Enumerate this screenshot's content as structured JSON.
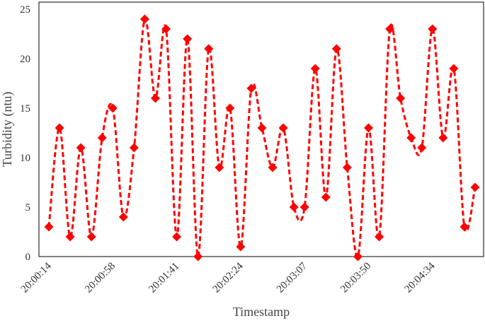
{
  "chart_data": {
    "type": "line",
    "x_label": "Timestamp",
    "y_label": "Turbidity (ntu)",
    "categories": [
      "20:00:14",
      null,
      null,
      null,
      null,
      null,
      "20:00:58",
      null,
      null,
      null,
      null,
      null,
      "20:01:41",
      null,
      null,
      null,
      null,
      null,
      "20:02:24",
      null,
      null,
      null,
      null,
      null,
      "20:03:07",
      null,
      null,
      null,
      null,
      null,
      "20:03:50",
      null,
      null,
      null,
      null,
      null,
      "20:04:34",
      null,
      null,
      null,
      null
    ],
    "series": [
      {
        "name": "Turbidity",
        "color": "#ff0000",
        "values": [
          3,
          13,
          2,
          11,
          2,
          12,
          15,
          4,
          11,
          24,
          16,
          23,
          2,
          22,
          0,
          21,
          9,
          15,
          1,
          17,
          13,
          9,
          13,
          5,
          5,
          19,
          6,
          21,
          9,
          0,
          13,
          2,
          23,
          16,
          12,
          11,
          23,
          12,
          19,
          3,
          7
        ]
      }
    ],
    "ylim": [
      0,
      25
    ],
    "yticks": [
      0,
      5,
      10,
      15,
      20,
      25
    ],
    "grid": false,
    "smooth": true,
    "dashed": true,
    "marker": "diamond"
  }
}
